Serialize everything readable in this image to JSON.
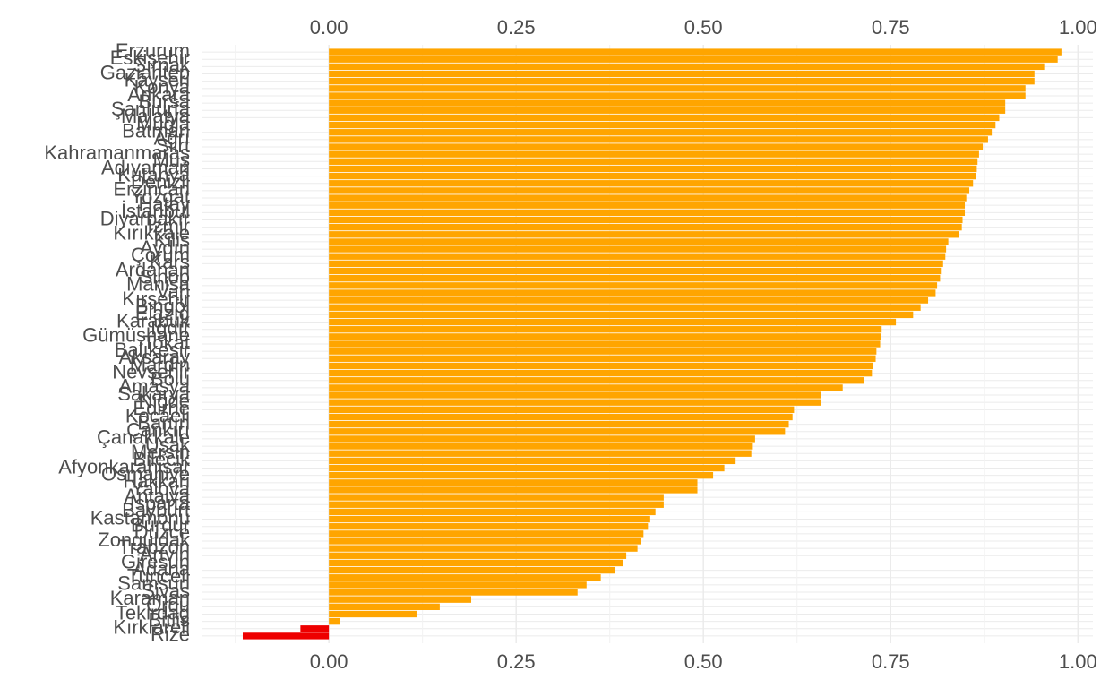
{
  "chart_data": {
    "type": "barh",
    "categories": [
      "Erzurum",
      "Eskişehir",
      "Şırnak",
      "Gaziantep",
      "Kayseri",
      "Konya",
      "Ankara",
      "Bursa",
      "Şanlıurfa",
      "Malatya",
      "Muğla",
      "Batman",
      "Ağrı",
      "Siirt",
      "Kahramanmaraş",
      "Muş",
      "Adıyaman",
      "Kütahya",
      "Denizli",
      "Erzincan",
      "Yozgat",
      "Hatay",
      "İstanbul",
      "Diyarbakır",
      "İzmir",
      "Kırıkkale",
      "Kilis",
      "Aydın",
      "Çorum",
      "Kars",
      "Ardahan",
      "Sinop",
      "Manisa",
      "Van",
      "Kırşehir",
      "Bingöl",
      "Elazığ",
      "Karabük",
      "Iğdır",
      "Gümüşhane",
      "Tokat",
      "Balıkesir",
      "Aksaray",
      "Mardin",
      "Nevşehir",
      "Bolu",
      "Amasya",
      "Sakarya",
      "Niğde",
      "Edirne",
      "Kocaeli",
      "Bartın",
      "Çankırı",
      "Çanakkale",
      "Uşak",
      "Mersin",
      "Bilecik",
      "Afyonkarahisar",
      "Osmaniye",
      "Hakkari",
      "Yalova",
      "Antalya",
      "Isparta",
      "Bayburt",
      "Kastamonu",
      "Burdur",
      "Düzce",
      "Zonguldak",
      "Trabzon",
      "Artvin",
      "Giresun",
      "Adana",
      "Tunceli",
      "Samsun",
      "Sivas",
      "Karaman",
      "Ordu",
      "Tekirdağ",
      "Bitlis",
      "Kırklareli",
      "Rize"
    ],
    "values": [
      0.978,
      0.973,
      0.955,
      0.942,
      0.942,
      0.93,
      0.93,
      0.903,
      0.903,
      0.895,
      0.89,
      0.885,
      0.88,
      0.873,
      0.868,
      0.866,
      0.865,
      0.864,
      0.86,
      0.855,
      0.851,
      0.849,
      0.849,
      0.846,
      0.845,
      0.841,
      0.827,
      0.824,
      0.823,
      0.82,
      0.817,
      0.816,
      0.812,
      0.81,
      0.8,
      0.79,
      0.78,
      0.757,
      0.738,
      0.737,
      0.736,
      0.731,
      0.73,
      0.727,
      0.725,
      0.714,
      0.686,
      0.657,
      0.657,
      0.621,
      0.619,
      0.614,
      0.609,
      0.569,
      0.566,
      0.564,
      0.543,
      0.528,
      0.513,
      0.492,
      0.492,
      0.447,
      0.447,
      0.436,
      0.429,
      0.426,
      0.42,
      0.417,
      0.412,
      0.397,
      0.393,
      0.382,
      0.363,
      0.344,
      0.332,
      0.19,
      0.148,
      0.117,
      0.015,
      -0.038,
      -0.115
    ],
    "positive_color": "#FFA500",
    "negative_color": "#EE0000",
    "xlim": [
      -0.17,
      1.02
    ],
    "xticks": [
      {
        "value": 0,
        "label": "0.00"
      },
      {
        "value": 0.25,
        "label": "0.25"
      },
      {
        "value": 0.5,
        "label": "0.50"
      },
      {
        "value": 0.75,
        "label": "0.75"
      },
      {
        "value": 1,
        "label": "1.00"
      }
    ],
    "xminor": [
      -0.125,
      0.125,
      0.375,
      0.625,
      0.875
    ],
    "grid": true
  }
}
